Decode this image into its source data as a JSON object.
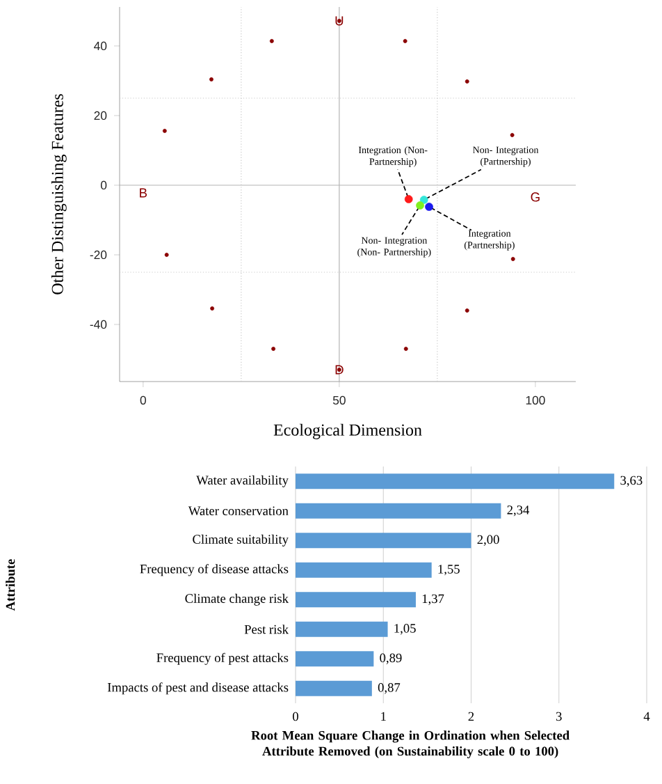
{
  "chart_data": [
    {
      "type": "scatter",
      "xlabel": "Ecological Dimension",
      "ylabel": "Other Distinguishing Features",
      "xlim": [
        -6,
        110.3
      ],
      "ylim": [
        -56.4,
        51.2
      ],
      "xticks": [
        0,
        50,
        100
      ],
      "yticks": [
        -40,
        -20,
        0,
        20,
        40
      ],
      "series": [
        {
          "color": "#8b0000",
          "x": [
            50,
            32.8,
            66.8,
            17.4,
            82.6,
            5.5,
            94.1,
            6.0,
            94.3,
            17.6,
            82.6,
            33.2,
            67.0,
            50
          ],
          "values": [
            47.2,
            41.4,
            41.4,
            30.4,
            29.8,
            15.6,
            14.4,
            -20,
            -21.2,
            -35.4,
            -36,
            -47,
            -47,
            -53
          ]
        },
        {
          "color": "#ff1a1a",
          "x": [
            67.7
          ],
          "values": [
            -4
          ]
        },
        {
          "color": "#33e6d9",
          "x": [
            71.6
          ],
          "values": [
            -4.2
          ]
        },
        {
          "color": "#80f020",
          "x": [
            70.6
          ],
          "values": [
            -5.8
          ]
        },
        {
          "color": "#1a1aee",
          "x": [
            72.9
          ],
          "values": [
            -6.2
          ]
        }
      ],
      "ref_lines": [
        {
          "axis": "x",
          "value": 50,
          "color": "#b4b4b4",
          "line_style": "solid"
        },
        {
          "axis": "y",
          "value": 0,
          "color": "#b4b4b4",
          "line_style": "solid"
        },
        {
          "axis": "x",
          "value": 25,
          "color": "#c8c8c8",
          "line_style": "dotted"
        },
        {
          "axis": "x",
          "value": 75,
          "color": "#c8c8c8",
          "line_style": "dotted"
        },
        {
          "axis": "y",
          "value": 25,
          "color": "#c8c8c8",
          "line_style": "dotted"
        },
        {
          "axis": "y",
          "value": -25,
          "color": "#c8c8c8",
          "line_style": "dotted"
        }
      ],
      "annotations": [
        {
          "text": "U",
          "x": 50,
          "y": 47.2
        },
        {
          "text": "D",
          "x": 50,
          "y": -53
        },
        {
          "text": "B",
          "x": 0,
          "y": 0
        },
        {
          "text": "G",
          "x": 100,
          "y": 0
        },
        {
          "text": "Integration (Non- Partnership)",
          "x": 67.7,
          "y": -4
        },
        {
          "text": "Non- Integration (Partnership)",
          "x": 71.6,
          "y": -4.2
        },
        {
          "text": "Non- Integration (Non- Partnership)",
          "x": 70.6,
          "y": -5.8
        },
        {
          "text": "Integration (Partnership)",
          "x": 72.9,
          "y": -6.2
        }
      ]
    },
    {
      "type": "bar",
      "orientation": "horizontal",
      "ylabel": "Attribute",
      "xlabel": "Root Mean Square Change in Ordination when Selected Attribute Removed (on Sustainability scale 0 to 100)",
      "categories": [
        "Water availability",
        "Water conservation",
        "Climate suitability",
        "Frequency of disease attacks",
        "Climate change risk",
        "Pest risk",
        "Frequency of pest attacks",
        "Impacts of pest and disease attacks"
      ],
      "values": [
        3.63,
        2.34,
        2.0,
        1.55,
        1.37,
        1.05,
        0.89,
        0.87
      ],
      "value_labels": [
        "3,63",
        "2,34",
        "2,00",
        "1,55",
        "1,37",
        "1,05",
        "0,89",
        "0,87"
      ],
      "color": "#5b9bd5",
      "xlim": [
        0,
        4
      ],
      "xticks": [
        0,
        1,
        2,
        3,
        4
      ],
      "grid": "x"
    }
  ]
}
